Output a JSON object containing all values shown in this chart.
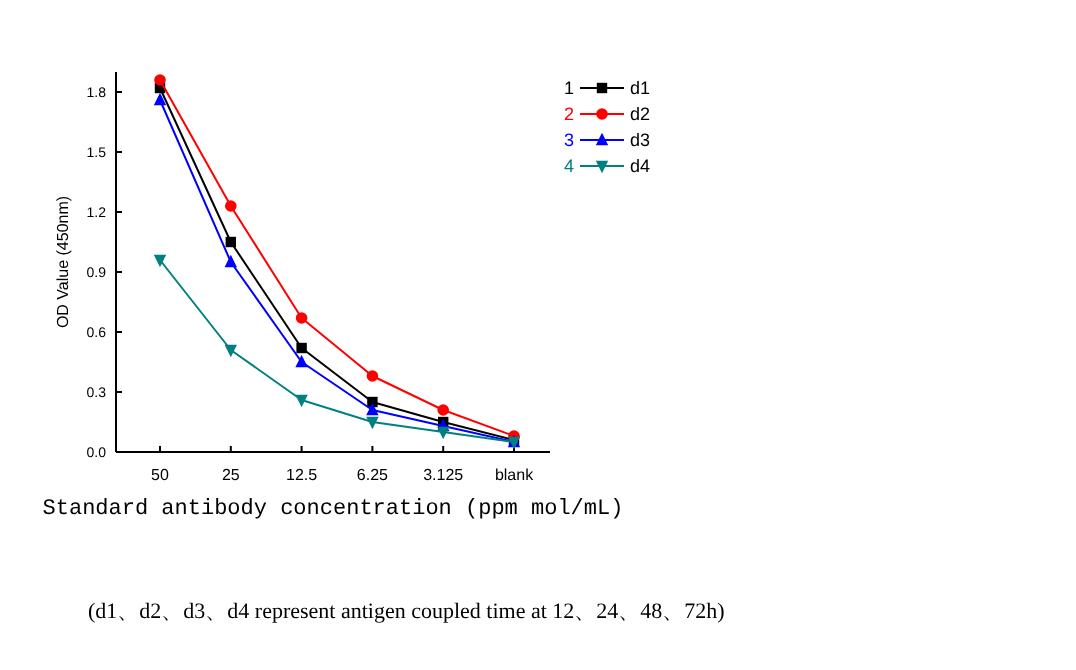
{
  "chart_data": {
    "type": "line",
    "xlabel": "Standard antibody concentration (ppm mol/mL)",
    "ylabel": "OD Value (450nm)",
    "categories": [
      "50",
      "25",
      "12.5",
      "6.25",
      "3.125",
      "blank"
    ],
    "ylim": [
      0,
      1.9
    ],
    "yticks": [
      {
        "value": 0,
        "label": "0.0"
      },
      0.3,
      0.6,
      0.9,
      1.2,
      1.5,
      1.8
    ],
    "legend": "top right",
    "grid": false,
    "series": [
      {
        "name": "d1",
        "color": "#000000",
        "marker": "square",
        "values": [
          1.82,
          1.05,
          0.52,
          0.25,
          0.15,
          0.06
        ]
      },
      {
        "name": "d2",
        "color": "#ff0000",
        "marker": "circle",
        "values": [
          1.86,
          1.23,
          0.67,
          0.38,
          0.21,
          0.08
        ]
      },
      {
        "name": "d3",
        "color": "#0000ff",
        "marker": "triangle",
        "values": [
          1.76,
          0.95,
          0.45,
          0.21,
          0.13,
          0.05
        ]
      },
      {
        "name": "d4",
        "color": "#008080",
        "marker": "triangle-down",
        "values": [
          0.96,
          0.51,
          0.26,
          0.15,
          0.1,
          0.05
        ]
      }
    ],
    "annotations": [
      "1",
      "2",
      "3",
      "4",
      "(d1、d2、d3、d4 represent antigen coupled time at 12、24、48、72h)"
    ]
  }
}
